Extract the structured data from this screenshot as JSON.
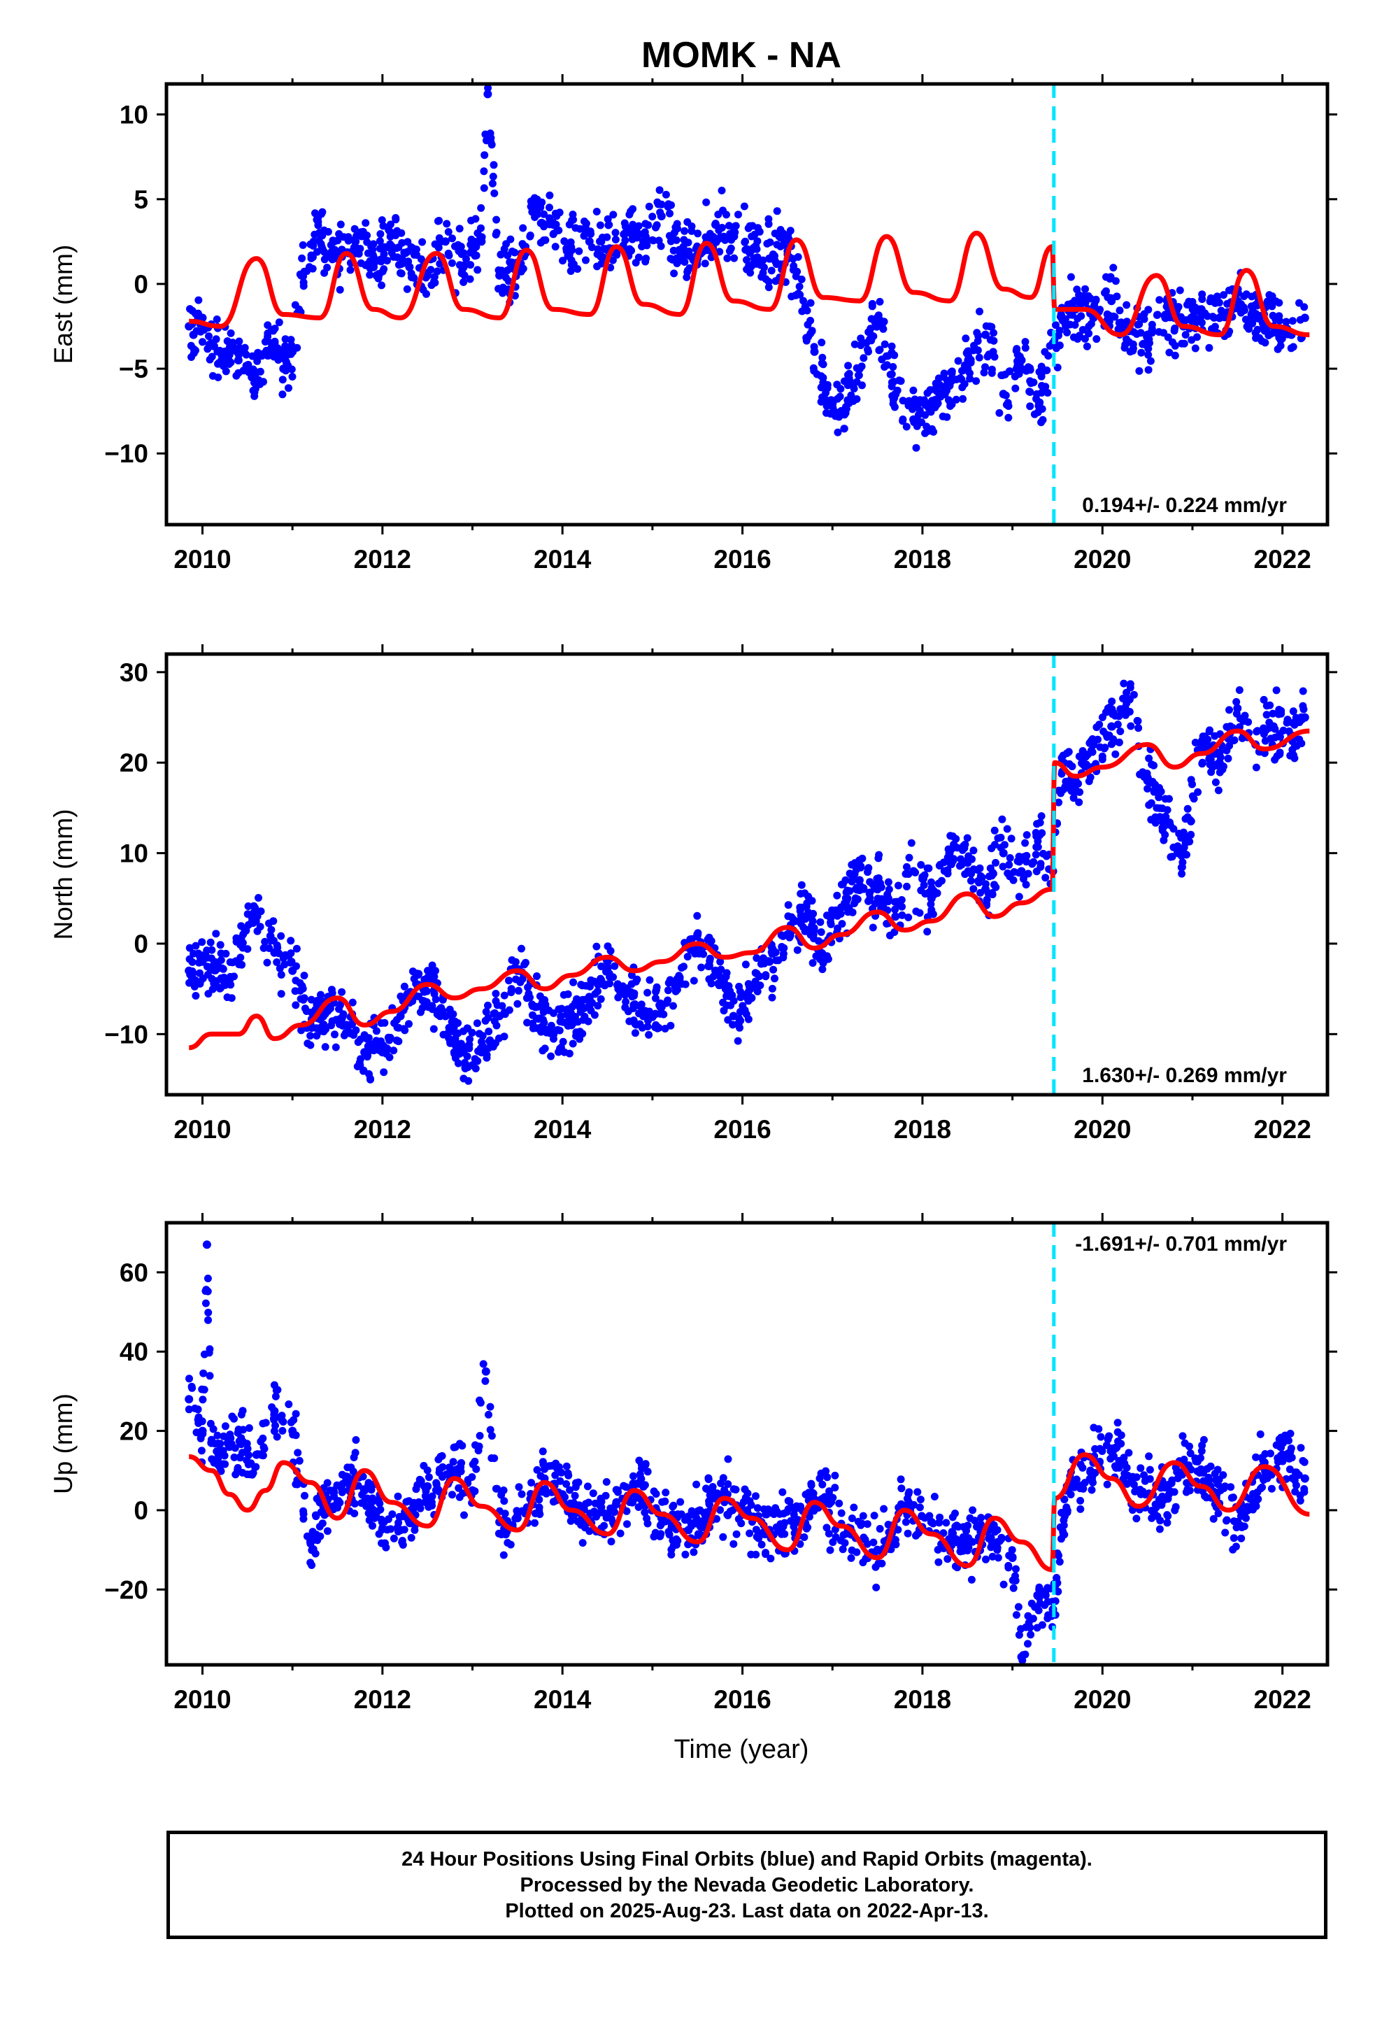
{
  "chart_data": {
    "title": "MOMK - NA",
    "type": "scatter",
    "xlabel": "Time (year)",
    "xlim": [
      2009.6,
      2022.5
    ],
    "xticks": [
      2010,
      2012,
      2014,
      2016,
      2018,
      2020,
      2022
    ],
    "offset_line_year": 2019.46,
    "panels": [
      {
        "id": "east",
        "ylabel": "East (mm)",
        "ylim": [
          -14.2,
          11.8
        ],
        "yticks": [
          -10,
          -5,
          0,
          5,
          10
        ],
        "rate_label": "0.194+/- 0.224 mm/yr",
        "rate_label_pos": "bottom-right",
        "series": [
          {
            "role": "observations",
            "color": "#0000ff",
            "x": [
              2009.85,
              2009.9,
              2010.0,
              2010.1,
              2010.25,
              2010.4,
              2010.55,
              2010.8,
              2010.9,
              2011.0,
              2011.1,
              2011.3,
              2011.5,
              2011.7,
              2011.9,
              2012.1,
              2012.3,
              2012.5,
              2012.7,
              2012.9,
              2013.1,
              2013.17,
              2013.3,
              2013.5,
              2013.7,
              2013.9,
              2014.1,
              2014.3,
              2014.5,
              2014.7,
              2014.9,
              2015.1,
              2015.3,
              2015.5,
              2015.7,
              2015.9,
              2016.1,
              2016.3,
              2016.5,
              2016.7,
              2016.8,
              2016.9,
              2017.1,
              2017.3,
              2017.5,
              2017.7,
              2017.9,
              2018.1,
              2018.3,
              2018.5,
              2018.7,
              2018.9,
              2019.1,
              2019.3,
              2019.45,
              2019.55,
              2019.7,
              2019.9,
              2020.1,
              2020.3,
              2020.5,
              2020.7,
              2020.9,
              2021.1,
              2021.3,
              2021.5,
              2021.7,
              2021.9,
              2022.1,
              2022.25
            ],
            "y": [
              -2.5,
              -3.0,
              -2.0,
              -3.5,
              -4.0,
              -4.5,
              -5.5,
              -3.5,
              -5.0,
              -4.0,
              0.5,
              3.0,
              1.5,
              2.5,
              1.0,
              3.0,
              1.0,
              0.5,
              2.5,
              1.0,
              2.5,
              11.2,
              0.5,
              1.0,
              4.5,
              3.5,
              2.0,
              2.5,
              2.0,
              3.0,
              2.5,
              4.0,
              2.0,
              1.5,
              3.5,
              3.0,
              2.0,
              1.5,
              2.5,
              -1.5,
              -4.0,
              -6.0,
              -7.5,
              -5.0,
              -2.0,
              -6.5,
              -8.0,
              -7.0,
              -6.0,
              -5.0,
              -3.0,
              -6.5,
              -4.5,
              -7.0,
              -3.5,
              -2.0,
              -1.5,
              -2.0,
              -1.0,
              -2.5,
              -3.0,
              -2.0,
              -2.5,
              -1.5,
              -2.0,
              -1.0,
              -2.0,
              -2.5,
              -3.0,
              -2.0
            ]
          },
          {
            "role": "model",
            "color": "#ff0000",
            "x": [
              2009.85,
              2010.2,
              2010.6,
              2010.9,
              2011.3,
              2011.6,
              2011.9,
              2012.2,
              2012.6,
              2012.9,
              2013.3,
              2013.6,
              2013.9,
              2014.3,
              2014.6,
              2014.9,
              2015.3,
              2015.6,
              2015.9,
              2016.3,
              2016.6,
              2016.9,
              2017.3,
              2017.6,
              2017.9,
              2018.3,
              2018.6,
              2018.9,
              2019.2,
              2019.44,
              2019.47,
              2019.8,
              2020.2,
              2020.6,
              2020.9,
              2021.3,
              2021.6,
              2021.9,
              2022.3
            ],
            "y": [
              -2.2,
              -2.5,
              1.5,
              -1.8,
              -2.0,
              1.8,
              -1.5,
              -2.0,
              1.8,
              -1.5,
              -2.0,
              2.0,
              -1.5,
              -1.8,
              2.2,
              -1.2,
              -1.8,
              2.4,
              -1.0,
              -1.5,
              2.6,
              -0.8,
              -1.0,
              2.8,
              -0.5,
              -1.0,
              3.0,
              -0.3,
              -0.8,
              2.2,
              -1.5,
              -1.5,
              -3.0,
              0.5,
              -2.5,
              -3.0,
              0.8,
              -2.5,
              -3.0
            ]
          }
        ]
      },
      {
        "id": "north",
        "ylabel": "North (mm)",
        "ylim": [
          -16.7,
          32.0
        ],
        "yticks": [
          -10,
          0,
          10,
          20,
          30
        ],
        "rate_label": "1.630+/- 0.269 mm/yr",
        "rate_label_pos": "bottom-right",
        "series": [
          {
            "role": "observations",
            "color": "#0000ff",
            "x": [
              2009.85,
              2010.0,
              2010.3,
              2010.55,
              2010.8,
              2011.0,
              2011.2,
              2011.4,
              2011.6,
              2011.8,
              2012.0,
              2012.2,
              2012.5,
              2012.7,
              2012.9,
              2013.1,
              2013.3,
              2013.5,
              2013.7,
              2013.9,
              2014.1,
              2014.3,
              2014.5,
              2014.7,
              2014.9,
              2015.1,
              2015.3,
              2015.5,
              2015.7,
              2015.9,
              2016.1,
              2016.3,
              2016.5,
              2016.7,
              2016.9,
              2017.1,
              2017.3,
              2017.5,
              2017.7,
              2017.9,
              2018.1,
              2018.3,
              2018.5,
              2018.7,
              2018.9,
              2019.1,
              2019.3,
              2019.45,
              2019.55,
              2019.7,
              2019.9,
              2020.1,
              2020.3,
              2020.5,
              2020.7,
              2020.9,
              2021.1,
              2021.3,
              2021.5,
              2021.7,
              2021.9,
              2022.1,
              2022.25
            ],
            "y": [
              -3.0,
              -2.0,
              -4.0,
              3.0,
              -1.0,
              -3.0,
              -9.0,
              -7.0,
              -9.0,
              -12.0,
              -12.0,
              -8.0,
              -4.0,
              -8.0,
              -12.0,
              -12.0,
              -8.0,
              -3.0,
              -7.0,
              -10.0,
              -9.0,
              -6.0,
              -2.0,
              -5.0,
              -8.0,
              -7.0,
              -4.0,
              1.0,
              -3.0,
              -8.0,
              -6.0,
              -2.0,
              1.0,
              3.0,
              0.0,
              4.0,
              7.0,
              6.0,
              3.0,
              8.0,
              5.0,
              10.0,
              9.0,
              6.0,
              10.0,
              8.0,
              12.0,
              8.0,
              20.0,
              18.0,
              22.0,
              24.0,
              27.0,
              18.0,
              14.0,
              10.0,
              22.0,
              20.0,
              26.0,
              22.0,
              24.0,
              23.0,
              25.0
            ]
          },
          {
            "role": "model",
            "color": "#ff0000",
            "x": [
              2009.85,
              2010.1,
              2010.4,
              2010.6,
              2010.8,
              2011.1,
              2011.5,
              2011.8,
              2012.1,
              2012.5,
              2012.8,
              2013.1,
              2013.5,
              2013.8,
              2014.1,
              2014.5,
              2014.8,
              2015.1,
              2015.5,
              2015.8,
              2016.1,
              2016.5,
              2016.8,
              2017.1,
              2017.5,
              2017.8,
              2018.1,
              2018.5,
              2018.8,
              2019.1,
              2019.44,
              2019.47,
              2019.7,
              2020.0,
              2020.5,
              2020.8,
              2021.1,
              2021.5,
              2021.8,
              2022.3
            ],
            "y": [
              -11.5,
              -10.0,
              -10.0,
              -8.0,
              -10.5,
              -9.0,
              -6.0,
              -9.0,
              -7.5,
              -4.5,
              -6.0,
              -5.0,
              -3.0,
              -5.0,
              -3.5,
              -1.5,
              -3.0,
              -2.0,
              0.0,
              -1.5,
              -1.0,
              1.8,
              -0.5,
              1.0,
              3.5,
              1.5,
              2.5,
              5.5,
              3.0,
              4.5,
              6.0,
              20.0,
              18.5,
              19.5,
              22.0,
              19.5,
              21.0,
              23.5,
              21.5,
              23.5
            ]
          }
        ]
      },
      {
        "id": "up",
        "ylabel": "Up (mm)",
        "ylim": [
          -39.0,
          72.5
        ],
        "yticks": [
          -20,
          0,
          20,
          40,
          60
        ],
        "rate_label": "-1.691+/- 0.701 mm/yr",
        "rate_label_pos": "top-right",
        "series": [
          {
            "role": "observations",
            "color": "#0000ff",
            "x": [
              2009.85,
              2010.0,
              2010.05,
              2010.1,
              2010.3,
              2010.6,
              2010.8,
              2011.0,
              2011.2,
              2011.4,
              2011.6,
              2011.8,
              2012.0,
              2012.2,
              2012.5,
              2012.8,
              2013.0,
              2013.15,
              2013.3,
              2013.5,
              2013.8,
              2014.0,
              2014.3,
              2014.6,
              2014.9,
              2015.1,
              2015.4,
              2015.7,
              2016.0,
              2016.3,
              2016.6,
              2016.9,
              2017.2,
              2017.5,
              2017.8,
              2018.1,
              2018.4,
              2018.7,
              2019.0,
              2019.1,
              2019.3,
              2019.45,
              2019.6,
              2019.9,
              2020.1,
              2020.4,
              2020.7,
              2020.9,
              2021.2,
              2021.5,
              2021.8,
              2022.0,
              2022.25
            ],
            "y": [
              28.0,
              20.0,
              67.0,
              17.0,
              16.0,
              14.0,
              25.0,
              20.0,
              -8.0,
              0.0,
              8.0,
              5.0,
              -3.0,
              -5.0,
              6.0,
              10.0,
              5.0,
              35.0,
              -3.0,
              -2.0,
              8.0,
              4.0,
              -3.0,
              2.0,
              6.0,
              -2.0,
              -5.0,
              3.0,
              0.0,
              -5.0,
              -3.0,
              3.0,
              -6.0,
              -10.0,
              0.0,
              -3.0,
              -8.0,
              -5.0,
              -12.0,
              -37.0,
              -20.0,
              -25.0,
              5.0,
              12.0,
              15.0,
              5.0,
              3.0,
              12.0,
              6.0,
              -3.0,
              12.0,
              14.0,
              8.0
            ]
          },
          {
            "role": "model",
            "color": "#ff0000",
            "x": [
              2009.85,
              2010.1,
              2010.3,
              2010.5,
              2010.7,
              2010.9,
              2011.2,
              2011.5,
              2011.8,
              2012.1,
              2012.5,
              2012.8,
              2013.1,
              2013.5,
              2013.8,
              2014.1,
              2014.5,
              2014.8,
              2015.1,
              2015.5,
              2015.8,
              2016.1,
              2016.5,
              2016.8,
              2017.1,
              2017.5,
              2017.8,
              2018.1,
              2018.5,
              2018.8,
              2019.1,
              2019.44,
              2019.47,
              2019.8,
              2020.1,
              2020.4,
              2020.8,
              2021.1,
              2021.4,
              2021.8,
              2022.3
            ],
            "y": [
              13.5,
              10.0,
              4.0,
              0.0,
              5.0,
              12.0,
              7.0,
              -2.0,
              10.0,
              2.0,
              -4.0,
              8.0,
              1.0,
              -5.0,
              7.0,
              0.0,
              -6.0,
              5.0,
              -1.0,
              -8.0,
              3.0,
              -2.0,
              -10.0,
              2.0,
              -4.0,
              -12.0,
              0.0,
              -6.0,
              -14.0,
              -2.0,
              -8.0,
              -15.0,
              3.0,
              14.0,
              8.0,
              1.0,
              12.0,
              6.0,
              0.0,
              11.0,
              -1.0
            ]
          }
        ]
      }
    ]
  },
  "footer": {
    "line1": "24 Hour Positions Using Final Orbits (blue) and Rapid Orbits (magenta).",
    "line2": "Processed by the Nevada Geodetic Laboratory.",
    "line3": "Plotted on 2025-Aug-23. Last data on 2022-Apr-13."
  }
}
